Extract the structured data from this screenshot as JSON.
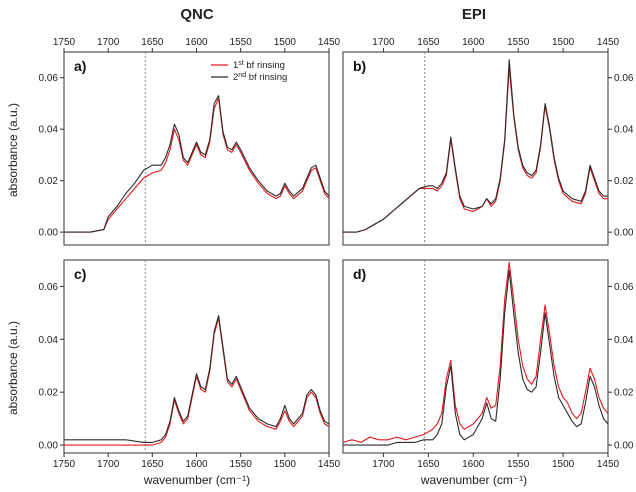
{
  "columns": [
    "QNC",
    "EPI"
  ],
  "xlabel": "wavenumber (cm⁻¹)",
  "ylabel": "absorbance (a.u.)",
  "colors": {
    "first": "#e31a1c",
    "second": "#2b2b2b",
    "dashed": "#777777"
  },
  "legend": [
    {
      "key": "first",
      "sup": "st",
      "num": "1",
      "text": " bf rinsing"
    },
    {
      "key": "second",
      "sup": "nd",
      "num": "2",
      "text": " bf rinsing"
    }
  ],
  "chart_data": [
    {
      "type": "line",
      "label": "a)",
      "col": "QNC",
      "xlim": [
        1750,
        1450
      ],
      "ylim": [
        -0.005,
        0.07
      ],
      "xticks": [
        1750,
        1700,
        1650,
        1600,
        1550,
        1500,
        1450
      ],
      "yticks": [
        0.0,
        0.02,
        0.04,
        0.06
      ],
      "vline": 1658,
      "series": [
        {
          "key": "first",
          "name": "1st bf rinsing",
          "x": [
            1750,
            1720,
            1705,
            1700,
            1690,
            1680,
            1670,
            1660,
            1650,
            1640,
            1635,
            1630,
            1625,
            1620,
            1615,
            1610,
            1605,
            1600,
            1595,
            1590,
            1585,
            1580,
            1575,
            1570,
            1565,
            1560,
            1555,
            1550,
            1540,
            1530,
            1520,
            1510,
            1505,
            1500,
            1495,
            1490,
            1480,
            1470,
            1465,
            1460,
            1455,
            1450
          ],
          "y": [
            0.0,
            0.0,
            0.001,
            0.005,
            0.009,
            0.013,
            0.017,
            0.021,
            0.023,
            0.024,
            0.027,
            0.032,
            0.04,
            0.036,
            0.028,
            0.026,
            0.03,
            0.034,
            0.03,
            0.029,
            0.035,
            0.048,
            0.052,
            0.038,
            0.032,
            0.031,
            0.034,
            0.031,
            0.024,
            0.019,
            0.015,
            0.013,
            0.014,
            0.018,
            0.015,
            0.013,
            0.016,
            0.024,
            0.025,
            0.02,
            0.015,
            0.013
          ]
        },
        {
          "key": "second",
          "name": "2nd bf rinsing",
          "x": [
            1750,
            1720,
            1705,
            1700,
            1690,
            1680,
            1670,
            1660,
            1650,
            1640,
            1635,
            1630,
            1625,
            1620,
            1615,
            1610,
            1605,
            1600,
            1595,
            1590,
            1585,
            1580,
            1575,
            1570,
            1565,
            1560,
            1555,
            1550,
            1540,
            1530,
            1520,
            1510,
            1505,
            1500,
            1495,
            1490,
            1480,
            1470,
            1465,
            1460,
            1455,
            1450
          ],
          "y": [
            0.0,
            0.0,
            0.001,
            0.006,
            0.01,
            0.015,
            0.019,
            0.024,
            0.026,
            0.026,
            0.029,
            0.034,
            0.042,
            0.038,
            0.029,
            0.027,
            0.031,
            0.035,
            0.031,
            0.03,
            0.036,
            0.05,
            0.053,
            0.039,
            0.033,
            0.032,
            0.035,
            0.032,
            0.025,
            0.02,
            0.016,
            0.014,
            0.015,
            0.019,
            0.016,
            0.014,
            0.017,
            0.025,
            0.026,
            0.021,
            0.016,
            0.014
          ]
        }
      ]
    },
    {
      "type": "line",
      "label": "b)",
      "col": "EPI",
      "xlim": [
        1745,
        1450
      ],
      "ylim": [
        -0.005,
        0.07
      ],
      "xticks": [
        1700,
        1650,
        1600,
        1550,
        1500,
        1450
      ],
      "yticks": [
        0.0,
        0.02,
        0.04,
        0.06
      ],
      "vline": 1654,
      "series": [
        {
          "key": "first",
          "name": "1st bf rinsing",
          "x": [
            1745,
            1730,
            1720,
            1710,
            1700,
            1690,
            1680,
            1670,
            1660,
            1650,
            1645,
            1640,
            1635,
            1630,
            1625,
            1620,
            1615,
            1610,
            1600,
            1590,
            1585,
            1580,
            1575,
            1570,
            1565,
            1560,
            1555,
            1550,
            1545,
            1540,
            1535,
            1530,
            1525,
            1520,
            1515,
            1510,
            1505,
            1500,
            1490,
            1480,
            1475,
            1470,
            1465,
            1460,
            1455,
            1450
          ],
          "y": [
            0.0,
            0.0,
            0.001,
            0.003,
            0.005,
            0.008,
            0.011,
            0.014,
            0.017,
            0.017,
            0.017,
            0.016,
            0.018,
            0.022,
            0.036,
            0.024,
            0.013,
            0.009,
            0.008,
            0.01,
            0.013,
            0.01,
            0.012,
            0.02,
            0.035,
            0.064,
            0.045,
            0.032,
            0.025,
            0.022,
            0.021,
            0.023,
            0.033,
            0.049,
            0.04,
            0.028,
            0.02,
            0.015,
            0.012,
            0.011,
            0.015,
            0.025,
            0.02,
            0.015,
            0.013,
            0.013
          ]
        },
        {
          "key": "second",
          "name": "2nd bf rinsing",
          "x": [
            1745,
            1730,
            1720,
            1710,
            1700,
            1690,
            1680,
            1670,
            1660,
            1650,
            1645,
            1640,
            1635,
            1630,
            1625,
            1620,
            1615,
            1610,
            1600,
            1590,
            1585,
            1580,
            1575,
            1570,
            1565,
            1560,
            1555,
            1550,
            1545,
            1540,
            1535,
            1530,
            1525,
            1520,
            1515,
            1510,
            1505,
            1500,
            1490,
            1480,
            1475,
            1470,
            1465,
            1460,
            1455,
            1450
          ],
          "y": [
            0.0,
            0.0,
            0.001,
            0.003,
            0.005,
            0.008,
            0.011,
            0.014,
            0.017,
            0.018,
            0.018,
            0.017,
            0.019,
            0.023,
            0.037,
            0.025,
            0.014,
            0.01,
            0.009,
            0.01,
            0.013,
            0.011,
            0.013,
            0.021,
            0.036,
            0.067,
            0.046,
            0.033,
            0.026,
            0.023,
            0.022,
            0.024,
            0.034,
            0.05,
            0.041,
            0.029,
            0.021,
            0.016,
            0.013,
            0.012,
            0.016,
            0.026,
            0.021,
            0.016,
            0.014,
            0.014
          ]
        }
      ]
    },
    {
      "type": "line",
      "label": "c)",
      "col": "QNC",
      "xlim": [
        1750,
        1450
      ],
      "ylim": [
        -0.003,
        0.07
      ],
      "xticks": [
        1750,
        1700,
        1650,
        1600,
        1550,
        1500,
        1450
      ],
      "yticks": [
        0.0,
        0.02,
        0.04,
        0.06
      ],
      "vline": 1658,
      "series": [
        {
          "key": "first",
          "name": "1st bf rinsing",
          "x": [
            1750,
            1720,
            1700,
            1680,
            1660,
            1650,
            1640,
            1635,
            1630,
            1625,
            1620,
            1615,
            1610,
            1605,
            1600,
            1595,
            1590,
            1585,
            1580,
            1575,
            1570,
            1565,
            1560,
            1555,
            1550,
            1540,
            1530,
            1520,
            1510,
            1505,
            1500,
            1495,
            1490,
            1480,
            1475,
            1470,
            1465,
            1460,
            1455,
            1450
          ],
          "y": [
            0.0,
            0.0,
            0.0,
            0.0,
            0.0,
            0.0,
            0.001,
            0.003,
            0.008,
            0.017,
            0.012,
            0.008,
            0.01,
            0.018,
            0.026,
            0.021,
            0.02,
            0.028,
            0.042,
            0.048,
            0.036,
            0.024,
            0.022,
            0.025,
            0.021,
            0.013,
            0.009,
            0.007,
            0.006,
            0.009,
            0.013,
            0.009,
            0.007,
            0.011,
            0.018,
            0.02,
            0.018,
            0.012,
            0.008,
            0.007
          ]
        },
        {
          "key": "second",
          "name": "2nd bf rinsing",
          "x": [
            1750,
            1720,
            1700,
            1680,
            1660,
            1650,
            1640,
            1635,
            1630,
            1625,
            1620,
            1615,
            1610,
            1605,
            1600,
            1595,
            1590,
            1585,
            1580,
            1575,
            1570,
            1565,
            1560,
            1555,
            1550,
            1540,
            1530,
            1520,
            1510,
            1505,
            1500,
            1495,
            1490,
            1480,
            1475,
            1470,
            1465,
            1460,
            1455,
            1450
          ],
          "y": [
            0.002,
            0.002,
            0.002,
            0.002,
            0.001,
            0.001,
            0.002,
            0.004,
            0.009,
            0.018,
            0.013,
            0.009,
            0.011,
            0.019,
            0.027,
            0.022,
            0.021,
            0.029,
            0.043,
            0.049,
            0.037,
            0.025,
            0.023,
            0.026,
            0.022,
            0.014,
            0.01,
            0.008,
            0.007,
            0.01,
            0.015,
            0.01,
            0.008,
            0.012,
            0.019,
            0.021,
            0.019,
            0.013,
            0.009,
            0.008
          ]
        }
      ]
    },
    {
      "type": "line",
      "label": "d)",
      "col": "EPI",
      "xlim": [
        1745,
        1450
      ],
      "ylim": [
        -0.003,
        0.07
      ],
      "xticks": [
        1700,
        1650,
        1600,
        1550,
        1500,
        1450
      ],
      "yticks": [
        0.0,
        0.02,
        0.04,
        0.06
      ],
      "vline": 1654,
      "series": [
        {
          "key": "first",
          "name": "1st bf rinsing",
          "x": [
            1745,
            1735,
            1725,
            1715,
            1705,
            1695,
            1685,
            1675,
            1665,
            1655,
            1645,
            1640,
            1635,
            1630,
            1625,
            1620,
            1615,
            1610,
            1600,
            1590,
            1585,
            1580,
            1575,
            1570,
            1565,
            1560,
            1555,
            1550,
            1545,
            1540,
            1535,
            1530,
            1525,
            1520,
            1515,
            1510,
            1505,
            1500,
            1495,
            1490,
            1485,
            1480,
            1475,
            1470,
            1465,
            1460,
            1455,
            1450
          ],
          "y": [
            0.001,
            0.002,
            0.001,
            0.003,
            0.002,
            0.002,
            0.003,
            0.002,
            0.003,
            0.004,
            0.006,
            0.008,
            0.012,
            0.025,
            0.032,
            0.015,
            0.008,
            0.006,
            0.008,
            0.012,
            0.018,
            0.014,
            0.015,
            0.03,
            0.055,
            0.069,
            0.055,
            0.04,
            0.03,
            0.025,
            0.023,
            0.026,
            0.04,
            0.053,
            0.042,
            0.03,
            0.022,
            0.018,
            0.016,
            0.012,
            0.01,
            0.012,
            0.02,
            0.029,
            0.025,
            0.018,
            0.014,
            0.012
          ]
        },
        {
          "key": "second",
          "name": "2nd bf rinsing",
          "x": [
            1745,
            1735,
            1725,
            1715,
            1705,
            1695,
            1685,
            1675,
            1665,
            1655,
            1645,
            1640,
            1635,
            1630,
            1625,
            1620,
            1615,
            1610,
            1600,
            1590,
            1585,
            1580,
            1575,
            1570,
            1565,
            1560,
            1555,
            1550,
            1545,
            1540,
            1535,
            1530,
            1525,
            1520,
            1515,
            1510,
            1505,
            1500,
            1495,
            1490,
            1485,
            1480,
            1475,
            1470,
            1465,
            1460,
            1455,
            1450
          ],
          "y": [
            0.0,
            0.0,
            0.0,
            0.0,
            0.0,
            0.0,
            0.001,
            0.001,
            0.001,
            0.002,
            0.002,
            0.004,
            0.008,
            0.022,
            0.03,
            0.012,
            0.004,
            0.002,
            0.004,
            0.01,
            0.016,
            0.01,
            0.009,
            0.025,
            0.05,
            0.066,
            0.05,
            0.035,
            0.025,
            0.021,
            0.02,
            0.022,
            0.035,
            0.05,
            0.038,
            0.026,
            0.018,
            0.015,
            0.012,
            0.009,
            0.007,
            0.008,
            0.016,
            0.026,
            0.022,
            0.015,
            0.01,
            0.008
          ]
        }
      ]
    }
  ]
}
